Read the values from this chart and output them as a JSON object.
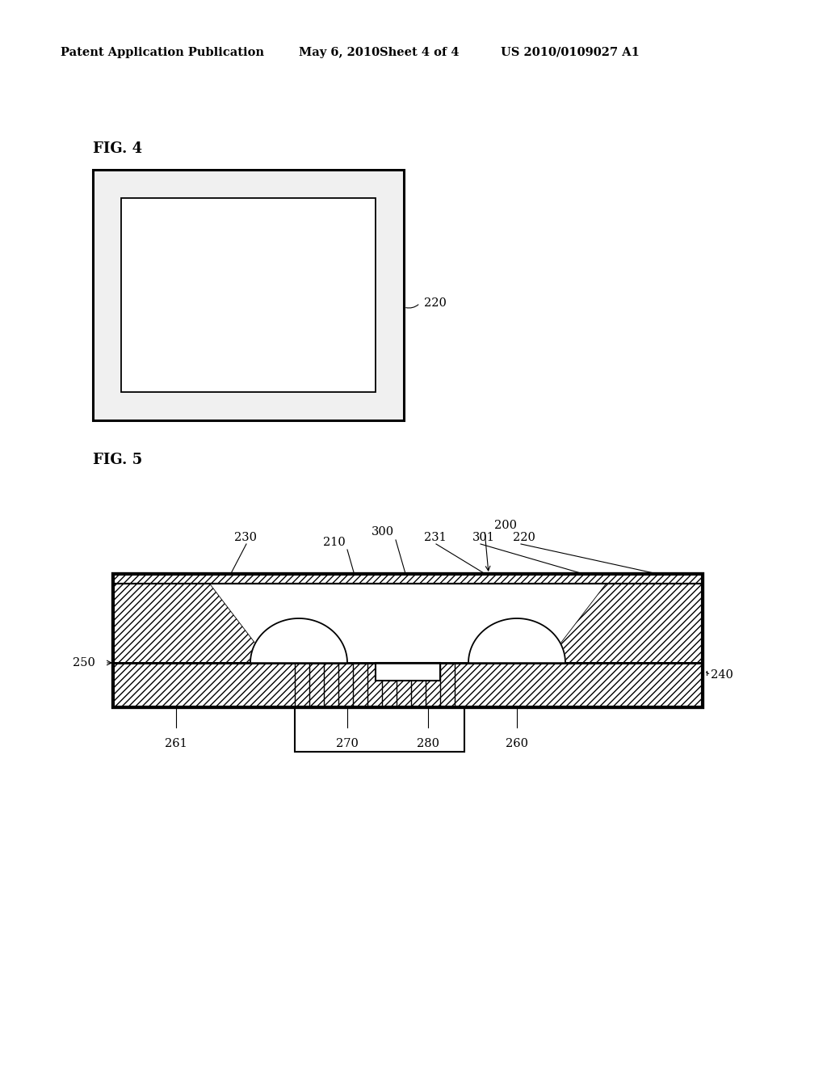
{
  "bg_color": "#ffffff",
  "header_text": "Patent Application Publication",
  "header_date": "May 6, 2010",
  "header_sheet": "Sheet 4 of 4",
  "header_patent": "US 2010/0109027 A1",
  "fig4_label": "FIG. 4",
  "fig5_label": "FIG. 5"
}
